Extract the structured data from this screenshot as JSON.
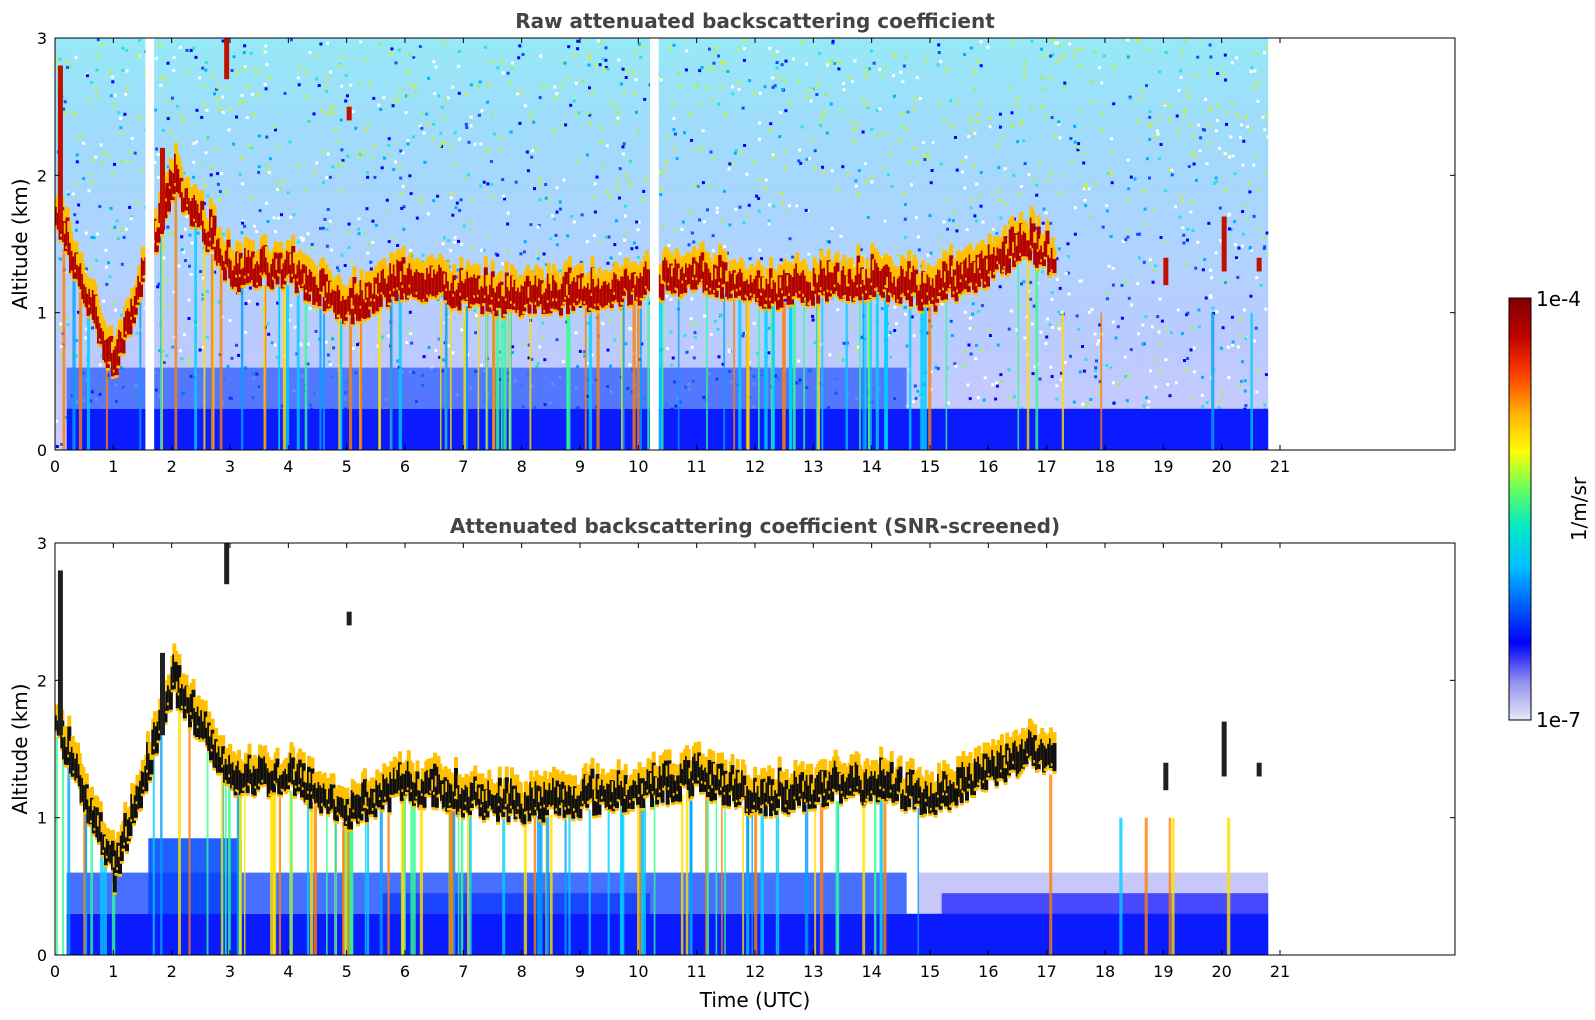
{
  "chart_data": [
    {
      "type": "heatmap",
      "title": "Raw attenuated backscattering coefficient",
      "xlabel": "",
      "ylabel": "Altitude (km)",
      "xlim": [
        0,
        24
      ],
      "ylim": [
        0,
        3
      ],
      "x_ticks": [
        "0",
        "1",
        "2",
        "3",
        "4",
        "5",
        "6",
        "7",
        "8",
        "9",
        "10",
        "11",
        "12",
        "13",
        "14",
        "15",
        "16",
        "17",
        "18",
        "19",
        "20",
        "21"
      ],
      "y_ticks": [
        "0",
        "1",
        "2",
        "3"
      ],
      "data_end_time": 20.8,
      "gaps": [
        [
          1.55,
          1.7
        ],
        [
          10.2,
          10.35
        ]
      ],
      "cloud_layer": [
        [
          0,
          1.6
        ],
        [
          1,
          0.5
        ],
        [
          2,
          1.9
        ],
        [
          3,
          1.2
        ],
        [
          4,
          1.2
        ],
        [
          5,
          0.95
        ],
        [
          6,
          1.15
        ],
        [
          7,
          1.05
        ],
        [
          8,
          1.0
        ],
        [
          9,
          1.05
        ],
        [
          10,
          1.1
        ],
        [
          11,
          1.2
        ],
        [
          12,
          1.05
        ],
        [
          13,
          1.1
        ],
        [
          14,
          1.15
        ],
        [
          15,
          1.05
        ],
        [
          16,
          1.25
        ],
        [
          16.7,
          1.4
        ],
        [
          17.1,
          1.3
        ]
      ],
      "screened": false
    },
    {
      "type": "heatmap",
      "title": "Attenuated backscattering coefficient (SNR-screened)",
      "xlabel": "Time (UTC)",
      "ylabel": "Altitude (km)",
      "xlim": [
        0,
        24
      ],
      "ylim": [
        0,
        3
      ],
      "x_ticks": [
        "0",
        "1",
        "2",
        "3",
        "4",
        "5",
        "6",
        "7",
        "8",
        "9",
        "10",
        "11",
        "12",
        "13",
        "14",
        "15",
        "16",
        "17",
        "18",
        "19",
        "20",
        "21"
      ],
      "y_ticks": [
        "0",
        "1",
        "2",
        "3"
      ],
      "data_end_time": 20.8,
      "cloud_layer": [
        [
          0,
          1.6
        ],
        [
          1,
          0.5
        ],
        [
          2,
          1.9
        ],
        [
          3,
          1.2
        ],
        [
          4,
          1.2
        ],
        [
          5,
          0.95
        ],
        [
          6,
          1.15
        ],
        [
          7,
          1.05
        ],
        [
          8,
          1.0
        ],
        [
          9,
          1.05
        ],
        [
          10,
          1.1
        ],
        [
          11,
          1.2
        ],
        [
          12,
          1.05
        ],
        [
          13,
          1.1
        ],
        [
          14,
          1.15
        ],
        [
          15,
          1.05
        ],
        [
          16,
          1.25
        ],
        [
          16.7,
          1.4
        ],
        [
          17.1,
          1.3
        ]
      ],
      "screened": true
    }
  ],
  "colorbar": {
    "max_label": "1e-4",
    "min_label": "1e-7",
    "unit_label": "1/m/sr",
    "colors": [
      "#e8e8f8",
      "#9090f0",
      "#0000ff",
      "#0060ff",
      "#00c0ff",
      "#00e8c8",
      "#60ff60",
      "#ffff00",
      "#ffb000",
      "#ff4000",
      "#c00000",
      "#800000"
    ]
  }
}
